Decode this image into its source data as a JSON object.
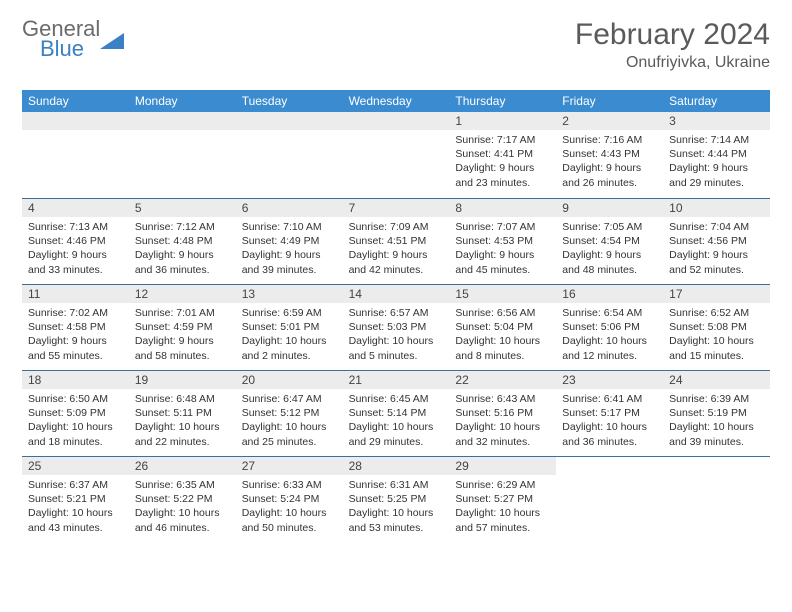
{
  "logo": {
    "line1": "General",
    "line2": "Blue"
  },
  "title": "February 2024",
  "location": "Onufriyivka, Ukraine",
  "colors": {
    "header_bg": "#3b8bd0",
    "daynum_bg": "#ececec",
    "rule": "#3b6fa0",
    "text": "#333333",
    "title": "#5a5a5a",
    "logo_accent": "#3b7fc4"
  },
  "day_names": [
    "Sunday",
    "Monday",
    "Tuesday",
    "Wednesday",
    "Thursday",
    "Friday",
    "Saturday"
  ],
  "weeks": [
    [
      null,
      null,
      null,
      null,
      {
        "n": "1",
        "sunrise": "7:17 AM",
        "sunset": "4:41 PM",
        "daylight": "9 hours and 23 minutes."
      },
      {
        "n": "2",
        "sunrise": "7:16 AM",
        "sunset": "4:43 PM",
        "daylight": "9 hours and 26 minutes."
      },
      {
        "n": "3",
        "sunrise": "7:14 AM",
        "sunset": "4:44 PM",
        "daylight": "9 hours and 29 minutes."
      }
    ],
    [
      {
        "n": "4",
        "sunrise": "7:13 AM",
        "sunset": "4:46 PM",
        "daylight": "9 hours and 33 minutes."
      },
      {
        "n": "5",
        "sunrise": "7:12 AM",
        "sunset": "4:48 PM",
        "daylight": "9 hours and 36 minutes."
      },
      {
        "n": "6",
        "sunrise": "7:10 AM",
        "sunset": "4:49 PM",
        "daylight": "9 hours and 39 minutes."
      },
      {
        "n": "7",
        "sunrise": "7:09 AM",
        "sunset": "4:51 PM",
        "daylight": "9 hours and 42 minutes."
      },
      {
        "n": "8",
        "sunrise": "7:07 AM",
        "sunset": "4:53 PM",
        "daylight": "9 hours and 45 minutes."
      },
      {
        "n": "9",
        "sunrise": "7:05 AM",
        "sunset": "4:54 PM",
        "daylight": "9 hours and 48 minutes."
      },
      {
        "n": "10",
        "sunrise": "7:04 AM",
        "sunset": "4:56 PM",
        "daylight": "9 hours and 52 minutes."
      }
    ],
    [
      {
        "n": "11",
        "sunrise": "7:02 AM",
        "sunset": "4:58 PM",
        "daylight": "9 hours and 55 minutes."
      },
      {
        "n": "12",
        "sunrise": "7:01 AM",
        "sunset": "4:59 PM",
        "daylight": "9 hours and 58 minutes."
      },
      {
        "n": "13",
        "sunrise": "6:59 AM",
        "sunset": "5:01 PM",
        "daylight": "10 hours and 2 minutes."
      },
      {
        "n": "14",
        "sunrise": "6:57 AM",
        "sunset": "5:03 PM",
        "daylight": "10 hours and 5 minutes."
      },
      {
        "n": "15",
        "sunrise": "6:56 AM",
        "sunset": "5:04 PM",
        "daylight": "10 hours and 8 minutes."
      },
      {
        "n": "16",
        "sunrise": "6:54 AM",
        "sunset": "5:06 PM",
        "daylight": "10 hours and 12 minutes."
      },
      {
        "n": "17",
        "sunrise": "6:52 AM",
        "sunset": "5:08 PM",
        "daylight": "10 hours and 15 minutes."
      }
    ],
    [
      {
        "n": "18",
        "sunrise": "6:50 AM",
        "sunset": "5:09 PM",
        "daylight": "10 hours and 18 minutes."
      },
      {
        "n": "19",
        "sunrise": "6:48 AM",
        "sunset": "5:11 PM",
        "daylight": "10 hours and 22 minutes."
      },
      {
        "n": "20",
        "sunrise": "6:47 AM",
        "sunset": "5:12 PM",
        "daylight": "10 hours and 25 minutes."
      },
      {
        "n": "21",
        "sunrise": "6:45 AM",
        "sunset": "5:14 PM",
        "daylight": "10 hours and 29 minutes."
      },
      {
        "n": "22",
        "sunrise": "6:43 AM",
        "sunset": "5:16 PM",
        "daylight": "10 hours and 32 minutes."
      },
      {
        "n": "23",
        "sunrise": "6:41 AM",
        "sunset": "5:17 PM",
        "daylight": "10 hours and 36 minutes."
      },
      {
        "n": "24",
        "sunrise": "6:39 AM",
        "sunset": "5:19 PM",
        "daylight": "10 hours and 39 minutes."
      }
    ],
    [
      {
        "n": "25",
        "sunrise": "6:37 AM",
        "sunset": "5:21 PM",
        "daylight": "10 hours and 43 minutes."
      },
      {
        "n": "26",
        "sunrise": "6:35 AM",
        "sunset": "5:22 PM",
        "daylight": "10 hours and 46 minutes."
      },
      {
        "n": "27",
        "sunrise": "6:33 AM",
        "sunset": "5:24 PM",
        "daylight": "10 hours and 50 minutes."
      },
      {
        "n": "28",
        "sunrise": "6:31 AM",
        "sunset": "5:25 PM",
        "daylight": "10 hours and 53 minutes."
      },
      {
        "n": "29",
        "sunrise": "6:29 AM",
        "sunset": "5:27 PM",
        "daylight": "10 hours and 57 minutes."
      },
      null,
      null
    ]
  ],
  "labels": {
    "sunrise": "Sunrise:",
    "sunset": "Sunset:",
    "daylight": "Daylight:"
  }
}
